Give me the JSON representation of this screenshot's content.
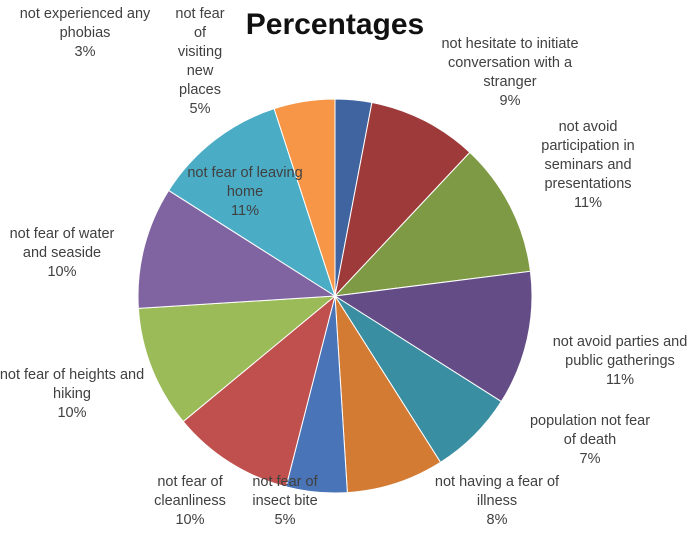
{
  "chart_data": {
    "type": "pie",
    "title": "Percentages",
    "categories": [
      "not experienced any phobias",
      "not hesitate to initiate conversation with a stranger",
      "not avoid participation in seminars and presentations",
      "not avoid parties and public gatherings",
      "population not fear of death",
      "not having a fear of illness",
      "not fear of insect bite",
      "not fear of cleanliness",
      "not fear of heights and hiking",
      "not fear of water and seaside",
      "not fear of leaving home",
      "not fear of visiting new places"
    ],
    "values": [
      3,
      9,
      11,
      11,
      7,
      8,
      5,
      10,
      10,
      10,
      11,
      5
    ],
    "value_labels": [
      "3%",
      "9%",
      "11%",
      "11%",
      "7%",
      "8%",
      "5%",
      "10%",
      "10%",
      "10%",
      "11%",
      "5%"
    ],
    "colors": [
      "#3f64a0",
      "#9e3b3a",
      "#7f9a45",
      "#644d86",
      "#3a8ea2",
      "#d37a33",
      "#4a74b8",
      "#c0504d",
      "#9bbb59",
      "#8064a2",
      "#4bacc6",
      "#f79646"
    ]
  }
}
